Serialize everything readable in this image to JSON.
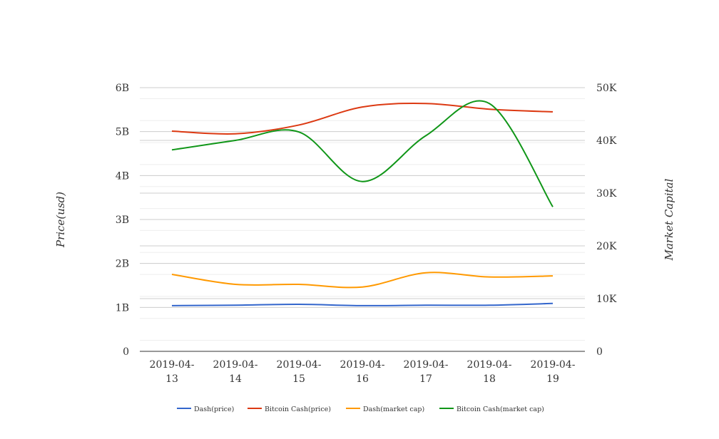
{
  "chart_data": {
    "type": "line",
    "x": [
      "2019-04-13",
      "2019-04-14",
      "2019-04-15",
      "2019-04-16",
      "2019-04-17",
      "2019-04-18",
      "2019-04-19"
    ],
    "x_tick_lines": [
      [
        "2019-04-",
        "13"
      ],
      [
        "2019-04-",
        "14"
      ],
      [
        "2019-04-",
        "15"
      ],
      [
        "2019-04-",
        "16"
      ],
      [
        "2019-04-",
        "17"
      ],
      [
        "2019-04-",
        "18"
      ],
      [
        "2019-04-",
        "19"
      ]
    ],
    "ylabel": "Price(usd)",
    "y2label": "Market Capital",
    "ylim": [
      0,
      6000000000
    ],
    "y2lim": [
      0,
      50000
    ],
    "y_ticks": [
      "0",
      "1B",
      "2B",
      "3B",
      "4B",
      "5B",
      "6B"
    ],
    "y2_ticks": [
      "0",
      "10K",
      "20K",
      "30K",
      "40K",
      "50K"
    ],
    "grid": true,
    "legend_position": "bottom",
    "series": [
      {
        "name": "Dash(price)",
        "axis": "left",
        "color": "#3366cc",
        "values": [
          1040000000.0,
          1050000000.0,
          1070000000.0,
          1040000000.0,
          1050000000.0,
          1050000000.0,
          1090000000.0
        ]
      },
      {
        "name": "Bitcoin Cash(price)",
        "axis": "left",
        "color": "#dc3912",
        "values": [
          5010000000.0,
          4950000000.0,
          5150000000.0,
          5560000000.0,
          5640000000.0,
          5510000000.0,
          5450000000.0
        ]
      },
      {
        "name": "Dash(market cap)",
        "axis": "right",
        "color": "#ff9900",
        "values": [
          14600,
          12700,
          12700,
          12200,
          14900,
          14100,
          14300
        ]
      },
      {
        "name": "Bitcoin Cash(market cap)",
        "axis": "right",
        "color": "#109618",
        "values": [
          38200,
          40000,
          41600,
          32200,
          40900,
          47000,
          27400
        ]
      }
    ]
  }
}
